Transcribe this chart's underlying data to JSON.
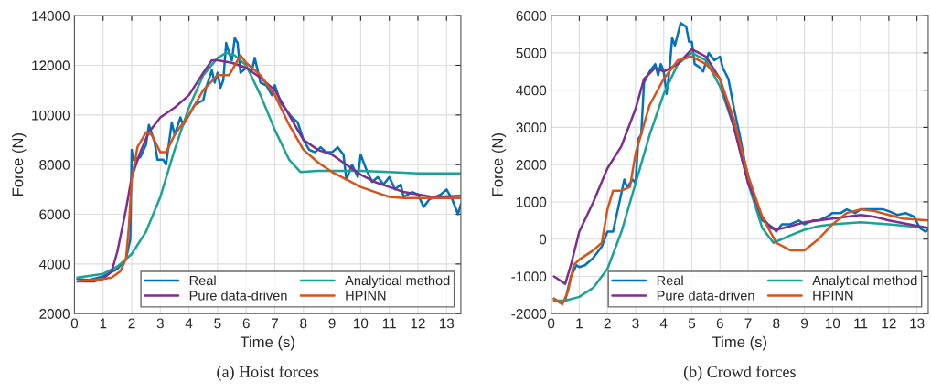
{
  "chart_data": [
    {
      "type": "line",
      "title": "(a) Hoist forces",
      "xlabel": "Time (s)",
      "ylabel": "Force (N)",
      "xlim": [
        0,
        13.5
      ],
      "ylim": [
        2000,
        14000
      ],
      "xticks": [
        0,
        1,
        2,
        3,
        4,
        5,
        6,
        7,
        8,
        9,
        10,
        11,
        12,
        13
      ],
      "yticks": [
        2000,
        4000,
        6000,
        8000,
        10000,
        12000,
        14000
      ],
      "grid": true,
      "legend": "bottom right",
      "series": [
        {
          "name": "Real",
          "color": "#0072bd",
          "x": [
            0.1,
            0.5,
            1.0,
            1.5,
            1.8,
            1.95,
            2.0,
            2.05,
            2.3,
            2.5,
            2.6,
            2.8,
            2.9,
            3.1,
            3.2,
            3.4,
            3.5,
            3.7,
            3.8,
            4.0,
            4.2,
            4.5,
            4.6,
            4.8,
            4.9,
            5.0,
            5.1,
            5.2,
            5.3,
            5.4,
            5.5,
            5.6,
            5.7,
            5.8,
            6.0,
            6.2,
            6.3,
            6.5,
            6.7,
            6.9,
            7.0,
            7.2,
            7.4,
            7.6,
            7.8,
            8.0,
            8.2,
            8.4,
            8.6,
            8.8,
            9.0,
            9.2,
            9.4,
            9.5,
            9.7,
            9.9,
            10.0,
            10.2,
            10.4,
            10.6,
            10.8,
            11.0,
            11.2,
            11.4,
            11.5,
            11.8,
            12.0,
            12.2,
            12.4,
            12.6,
            12.8,
            13.0,
            13.2,
            13.4,
            13.5
          ],
          "values": [
            3400,
            3350,
            3500,
            3800,
            4200,
            5000,
            8600,
            8200,
            8300,
            8800,
            9600,
            8900,
            8200,
            8200,
            8000,
            9700,
            9200,
            9900,
            9600,
            10000,
            10400,
            10600,
            11100,
            11800,
            11300,
            11700,
            11100,
            11400,
            12900,
            12500,
            12200,
            13100,
            12900,
            11700,
            11900,
            11800,
            12300,
            11300,
            11200,
            10800,
            11200,
            10500,
            10200,
            9900,
            9700,
            9000,
            8600,
            8500,
            8700,
            8500,
            8500,
            8700,
            8400,
            7400,
            8000,
            7500,
            8400,
            7800,
            7300,
            7500,
            7200,
            7500,
            7000,
            7200,
            6700,
            6900,
            6800,
            6300,
            6600,
            6700,
            6800,
            7000,
            6600,
            6000,
            6400
          ]
        },
        {
          "name": "Analytical method",
          "color": "#1aa394",
          "x": [
            0.1,
            1,
            1.5,
            2,
            2.5,
            3,
            3.5,
            4,
            4.5,
            5,
            5.3,
            5.6,
            6,
            6.5,
            7,
            7.5,
            7.9,
            8.5,
            9,
            10,
            11,
            12,
            13.5
          ],
          "values": [
            3450,
            3600,
            3900,
            4400,
            5300,
            6700,
            8600,
            10300,
            11600,
            12300,
            12500,
            12400,
            12000,
            10800,
            9400,
            8200,
            7700,
            7750,
            7750,
            7750,
            7700,
            7650,
            7650
          ]
        },
        {
          "name": "Pure data-driven",
          "color": "#7e2f8e",
          "x": [
            0.1,
            0.7,
            1.0,
            1.3,
            1.5,
            1.8,
            2.0,
            2.3,
            2.6,
            3.0,
            3.5,
            4.0,
            4.5,
            4.8,
            5.0,
            5.5,
            6.0,
            6.5,
            7.0,
            7.5,
            8.0,
            8.5,
            9.0,
            9.5,
            10.0,
            10.5,
            11.0,
            11.5,
            12.0,
            12.5,
            13.5
          ],
          "values": [
            3300,
            3300,
            3400,
            3700,
            4500,
            6200,
            7500,
            8500,
            9300,
            9900,
            10300,
            10800,
            11700,
            12200,
            12200,
            12100,
            11900,
            11500,
            11000,
            10000,
            9000,
            8600,
            8400,
            8000,
            7600,
            7300,
            7100,
            6900,
            6800,
            6700,
            6750
          ]
        },
        {
          "name": "HPINN",
          "color": "#d95319",
          "x": [
            0.1,
            1.0,
            1.3,
            1.6,
            1.8,
            1.9,
            2.0,
            2.2,
            2.5,
            2.7,
            3.0,
            3.2,
            3.5,
            4.0,
            4.5,
            5.0,
            5.4,
            5.8,
            6.0,
            6.5,
            7.0,
            7.5,
            8.0,
            8.5,
            9.0,
            9.5,
            10.0,
            10.5,
            11.0,
            11.5,
            12,
            13.5
          ],
          "values": [
            3300,
            3400,
            3450,
            3700,
            4200,
            5500,
            7400,
            8700,
            9300,
            9200,
            8500,
            8500,
            9200,
            10000,
            11000,
            11600,
            11600,
            12400,
            12100,
            11600,
            10800,
            9600,
            8600,
            8100,
            7700,
            7400,
            7100,
            6900,
            6700,
            6650,
            6650,
            6650
          ]
        }
      ]
    },
    {
      "type": "line",
      "title": "(b) Crowd forces",
      "xlabel": "Time (s)",
      "ylabel": "Force (N)",
      "xlim": [
        0,
        13.4
      ],
      "ylim": [
        -2000,
        6000
      ],
      "xticks": [
        0,
        1,
        2,
        3,
        4,
        5,
        6,
        7,
        8,
        9,
        10,
        11,
        12,
        13
      ],
      "yticks": [
        -2000,
        -1000,
        0,
        1000,
        2000,
        3000,
        4000,
        5000,
        6000
      ],
      "grid": true,
      "legend": "bottom right",
      "series": [
        {
          "name": "Real",
          "color": "#0072bd",
          "x": [
            0.1,
            0.3,
            0.5,
            0.7,
            0.9,
            1.0,
            1.2,
            1.5,
            1.8,
            2.0,
            2.2,
            2.4,
            2.6,
            2.7,
            2.9,
            3.0,
            3.1,
            3.2,
            3.3,
            3.5,
            3.7,
            3.8,
            3.9,
            4.0,
            4.1,
            4.2,
            4.3,
            4.4,
            4.6,
            4.8,
            4.9,
            5.0,
            5.1,
            5.3,
            5.4,
            5.6,
            5.8,
            6.0,
            6.1,
            6.3,
            6.5,
            6.7,
            6.9,
            7.1,
            7.3,
            7.5,
            7.7,
            7.9,
            8.0,
            8.2,
            8.5,
            8.8,
            9.0,
            9.3,
            9.5,
            9.8,
            10.0,
            10.3,
            10.5,
            10.8,
            11.0,
            11.3,
            11.5,
            11.8,
            12.0,
            12.3,
            12.6,
            12.9,
            13.1,
            13.3,
            13.4
          ],
          "values": [
            -1600,
            -1700,
            -1650,
            -1000,
            -700,
            -750,
            -700,
            -500,
            -200,
            200,
            200,
            900,
            1600,
            1400,
            1600,
            1500,
            2700,
            2800,
            4200,
            4500,
            4700,
            4400,
            4700,
            4500,
            3900,
            4500,
            5400,
            5200,
            5800,
            5700,
            5300,
            5300,
            4700,
            4600,
            4500,
            5000,
            4800,
            4900,
            4600,
            4300,
            3500,
            2800,
            2000,
            1400,
            900,
            500,
            400,
            300,
            200,
            400,
            400,
            500,
            400,
            500,
            500,
            600,
            700,
            700,
            800,
            700,
            800,
            800,
            800,
            800,
            750,
            650,
            700,
            600,
            300,
            200,
            250
          ]
        },
        {
          "name": "Analytical method",
          "color": "#1aa394",
          "x": [
            0.1,
            0.5,
            1,
            1.5,
            2,
            2.5,
            3,
            3.5,
            4,
            4.5,
            5,
            5.5,
            6,
            6.5,
            7,
            7.5,
            7.9,
            8.5,
            9,
            9.5,
            10,
            11,
            12,
            13.4
          ],
          "values": [
            -1650,
            -1650,
            -1550,
            -1300,
            -800,
            200,
            1500,
            2800,
            3900,
            4700,
            5000,
            4800,
            4100,
            3000,
            1500,
            300,
            -100,
            100,
            250,
            350,
            400,
            450,
            400,
            300
          ]
        },
        {
          "name": "Pure data-driven",
          "color": "#7e2f8e",
          "x": [
            0.1,
            0.3,
            0.5,
            0.7,
            1.0,
            1.5,
            2.0,
            2.5,
            3.0,
            3.3,
            3.7,
            4.0,
            4.5,
            5.0,
            5.5,
            6.0,
            6.5,
            7.0,
            7.5,
            7.8,
            8.0,
            8.5,
            9.0,
            10.0,
            11.0,
            11.5,
            12.0,
            13.4
          ],
          "values": [
            -1000,
            -1100,
            -1200,
            -700,
            200,
            1000,
            1900,
            2500,
            3500,
            4300,
            4600,
            4500,
            4700,
            5100,
            4900,
            4300,
            3000,
            1500,
            600,
            300,
            250,
            350,
            450,
            550,
            650,
            600,
            500,
            300
          ]
        },
        {
          "name": "HPINN",
          "color": "#d95319",
          "x": [
            0.1,
            0.4,
            0.6,
            0.8,
            1.0,
            1.5,
            1.8,
            2.0,
            2.2,
            2.5,
            2.8,
            3.0,
            3.5,
            4.0,
            4.5,
            5.0,
            5.5,
            6.0,
            6.5,
            7.0,
            7.5,
            8.0,
            8.5,
            9.0,
            9.5,
            10.0,
            10.5,
            11.0,
            11.5,
            12.0,
            12.5,
            13.4
          ],
          "values": [
            -1600,
            -1750,
            -1400,
            -700,
            -550,
            -300,
            -100,
            800,
            1300,
            1300,
            1400,
            2300,
            3600,
            4300,
            4800,
            4900,
            4700,
            4300,
            3200,
            1700,
            600,
            -100,
            -300,
            -300,
            0,
            400,
            700,
            800,
            750,
            650,
            550,
            500
          ]
        }
      ]
    }
  ]
}
